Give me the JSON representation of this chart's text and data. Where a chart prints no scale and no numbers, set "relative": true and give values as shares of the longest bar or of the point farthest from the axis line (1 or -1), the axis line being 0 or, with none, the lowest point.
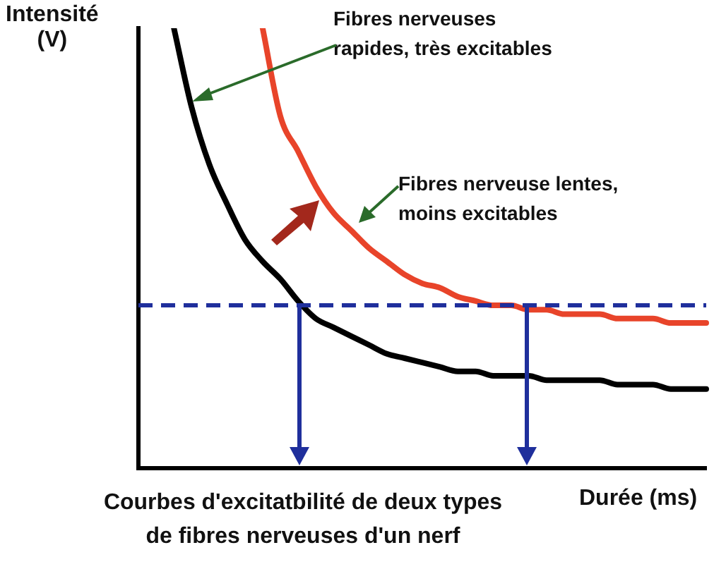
{
  "chart_data": {
    "type": "line",
    "relative": true,
    "title": "Courbes d'excitatbilité de deux types de fibres nerveuses d'un nerf",
    "xlabel": "Durée (ms)",
    "ylabel": "Intensité\n(V)",
    "annotations": [
      "Fibres nerveuses\nrapides, très excitables",
      "Fibres nerveuse lentes,\nmoins excitables"
    ],
    "categories": [
      null,
      null,
      null,
      null,
      null,
      null,
      null,
      null,
      null,
      null,
      null,
      null,
      null,
      null,
      null,
      null,
      null,
      null,
      null,
      null,
      null,
      null,
      null,
      null,
      null,
      null,
      null,
      null,
      null,
      null,
      null,
      null,
      null
    ],
    "series": [
      {
        "color": "#000000",
        "values": [
          null,
          null,
          1.0,
          0.82,
          0.69,
          0.6,
          0.52,
          0.47,
          0.43,
          0.38,
          0.34,
          0.32,
          0.3,
          0.28,
          0.26,
          0.25,
          0.24,
          0.23,
          0.22,
          0.22,
          0.21,
          0.21,
          0.21,
          0.2,
          0.2,
          0.2,
          0.2,
          0.19,
          0.19,
          0.19,
          0.18,
          0.18,
          0.18
        ]
      },
      {
        "color": "#e8442a",
        "values": [
          null,
          null,
          null,
          null,
          null,
          null,
          null,
          1.0,
          0.8,
          0.72,
          0.64,
          0.58,
          0.54,
          0.5,
          0.47,
          0.44,
          0.42,
          0.41,
          0.39,
          0.38,
          0.37,
          0.37,
          0.36,
          0.36,
          0.35,
          0.35,
          0.35,
          0.34,
          0.34,
          0.34,
          0.33,
          0.33,
          0.33
        ]
      }
    ],
    "ref_lines": [
      {
        "axis": "y",
        "value": 0.37,
        "color": "#1f2f9c",
        "line_style": "dashed"
      }
    ],
    "grid": false,
    "legend": false,
    "marker": "none",
    "tick_labels": false
  }
}
